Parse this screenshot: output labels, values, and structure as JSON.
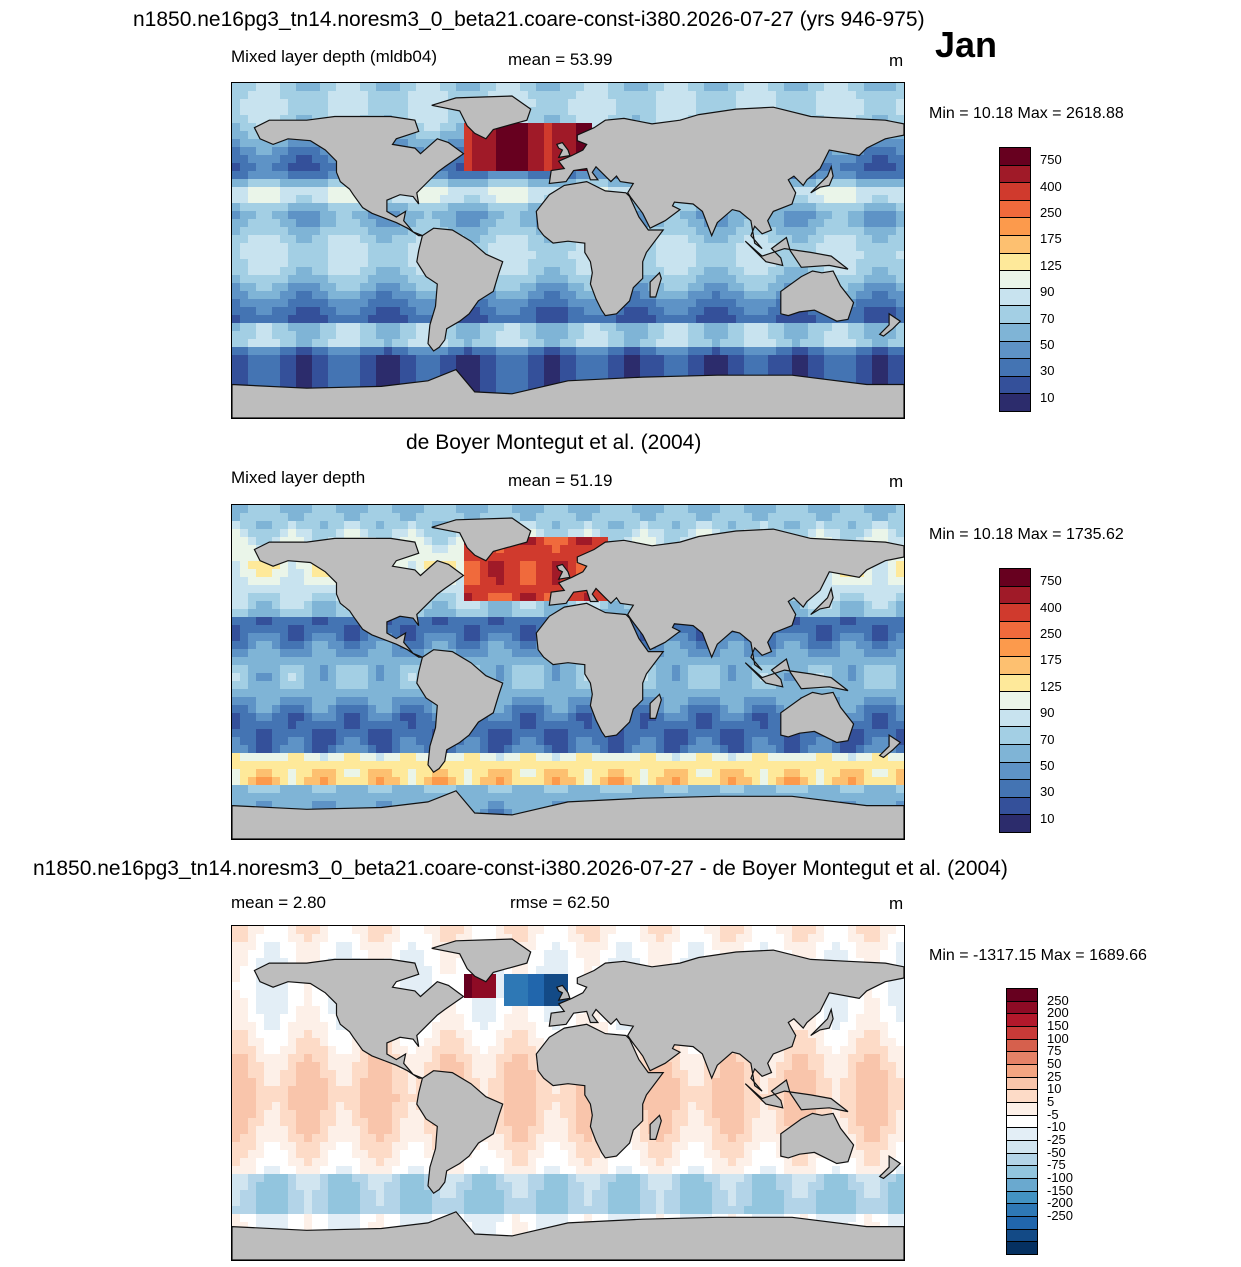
{
  "header": {
    "title": "n1850.ne16pg3_tn14.noresm3_0_beta21.coare-const-i380.2026-07-27 (yrs 946-975)",
    "month": "Jan"
  },
  "panels": [
    {
      "id": "model",
      "heading": "",
      "left_label": "Mixed layer depth (mldb04)",
      "center_label": "mean =  53.99",
      "units": "m",
      "minmax": "Min =  10.18 Max = 2618.88",
      "colorbar": [
        "750",
        "400",
        "250",
        "175",
        "125",
        "90",
        "70",
        "50",
        "30",
        "10"
      ],
      "palette": [
        "#67001f",
        "#a01a28",
        "#d03a2d",
        "#f06a3c",
        "#fc9a4c",
        "#fdc070",
        "#fee99a",
        "#eaf5e9",
        "#c8e3ef",
        "#a3cfe4",
        "#7fb4d6",
        "#5e93c6",
        "#4474b3",
        "#34509a",
        "#2c2c6c"
      ]
    },
    {
      "id": "obs",
      "heading": "de Boyer Montegut et al. (2004)",
      "left_label": "Mixed layer depth",
      "center_label": "mean =  51.19",
      "units": "m",
      "minmax": "Min =  10.18 Max = 1735.62",
      "colorbar": [
        "750",
        "400",
        "250",
        "175",
        "125",
        "90",
        "70",
        "50",
        "30",
        "10"
      ],
      "palette": [
        "#67001f",
        "#a01a28",
        "#d03a2d",
        "#f06a3c",
        "#fc9a4c",
        "#fdc070",
        "#fee99a",
        "#eaf5e9",
        "#c8e3ef",
        "#a3cfe4",
        "#7fb4d6",
        "#5e93c6",
        "#4474b3",
        "#34509a",
        "#2c2c6c"
      ]
    },
    {
      "id": "diff",
      "heading": "n1850.ne16pg3_tn14.noresm3_0_beta21.coare-const-i380.2026-07-27 - de Boyer Montegut et al. (2004)",
      "left_label": "mean =   2.80",
      "center_label": "rmse =  62.50",
      "units": "m",
      "minmax": "Min = -1317.15 Max = 1689.66",
      "colorbar": [
        "250",
        "200",
        "150",
        "100",
        "75",
        "50",
        "25",
        "10",
        "5",
        "-5",
        "-10",
        "-25",
        "-50",
        "-75",
        "-100",
        "-150",
        "-200",
        "-250"
      ],
      "palette": [
        "#67001f",
        "#8e0b25",
        "#b2182b",
        "#c83a38",
        "#d6604d",
        "#e58267",
        "#f4a582",
        "#f9c5ab",
        "#fddbc7",
        "#fdf0e8",
        "#ffffff",
        "#e3eef6",
        "#d1e5f0",
        "#b3d4e8",
        "#92c5de",
        "#6aa9cf",
        "#4393c3",
        "#2e78b5",
        "#2166ac",
        "#134a86",
        "#053061"
      ]
    }
  ]
}
